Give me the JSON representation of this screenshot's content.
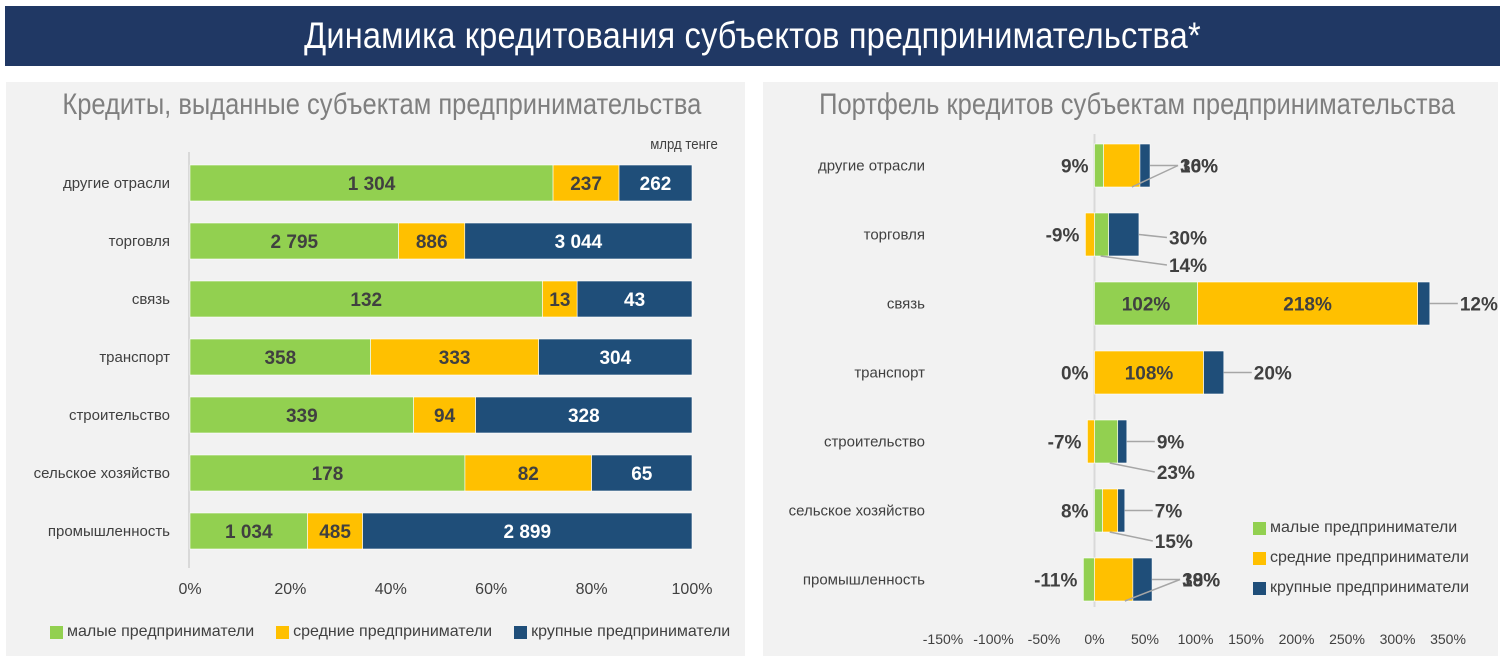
{
  "header": {
    "title": "Динамика кредитования субъектов предпринимательства*"
  },
  "colors": {
    "small": "#92d050",
    "medium": "#ffc000",
    "large": "#1f4e79",
    "axis": "#d9d9d9",
    "text": "#404040",
    "banner": "#203864"
  },
  "legend": [
    "малые предприниматели",
    "средние предприниматели",
    "крупные предприниматели"
  ],
  "chart_data": [
    {
      "type": "bar",
      "orientation": "horizontal",
      "stacked": "percent",
      "title": "Кредиты, выданные субъектам предпринимательства",
      "unit": "млрд тенге",
      "categories": [
        "другие отрасли",
        "торговля",
        "связь",
        "транспорт",
        "строительство",
        "сельское хозяйство",
        "промышленность"
      ],
      "series": [
        {
          "name": "малые предприниматели",
          "values": [
            1304,
            2795,
            132,
            358,
            339,
            178,
            1034
          ],
          "labels": [
            "1 304",
            "2 795",
            "132",
            "358",
            "339",
            "178",
            "1 034"
          ]
        },
        {
          "name": "средние предприниматели",
          "values": [
            237,
            886,
            13,
            333,
            94,
            82,
            485
          ],
          "labels": [
            "237",
            "886",
            "13",
            "333",
            "94",
            "82",
            "485"
          ]
        },
        {
          "name": "крупные предприниматели",
          "values": [
            262,
            3044,
            43,
            304,
            328,
            65,
            2899
          ],
          "labels": [
            "262",
            "3 044",
            "43",
            "304",
            "328",
            "65",
            "2 899"
          ]
        }
      ],
      "xlim": [
        0,
        100
      ],
      "xticks": [
        "0%",
        "20%",
        "40%",
        "60%",
        "80%",
        "100%"
      ],
      "legend_position": "bottom",
      "grid": false
    },
    {
      "type": "bar",
      "orientation": "horizontal",
      "stacked": "diverging",
      "title": "Портфель кредитов субъектам предпринимательства",
      "categories": [
        "другие отрасли",
        "торговля",
        "связь",
        "транспорт",
        "строительство",
        "сельское хозяйство",
        "промышленность"
      ],
      "series": [
        {
          "name": "малые предприниматели",
          "values": [
            9,
            14,
            102,
            0,
            23,
            8,
            -11
          ]
        },
        {
          "name": "средние предприниматели",
          "values": [
            36,
            -9,
            218,
            108,
            -7,
            15,
            38
          ]
        },
        {
          "name": "крупные предприниматели",
          "values": [
            10,
            30,
            12,
            20,
            9,
            7,
            19
          ]
        }
      ],
      "xlim": [
        -150,
        350
      ],
      "xticks": [
        "-150%",
        "-100%",
        "-50%",
        "0%",
        "50%",
        "100%",
        "150%",
        "200%",
        "250%",
        "300%",
        "350%"
      ],
      "legend_position": "bottom-right",
      "grid": false
    }
  ]
}
